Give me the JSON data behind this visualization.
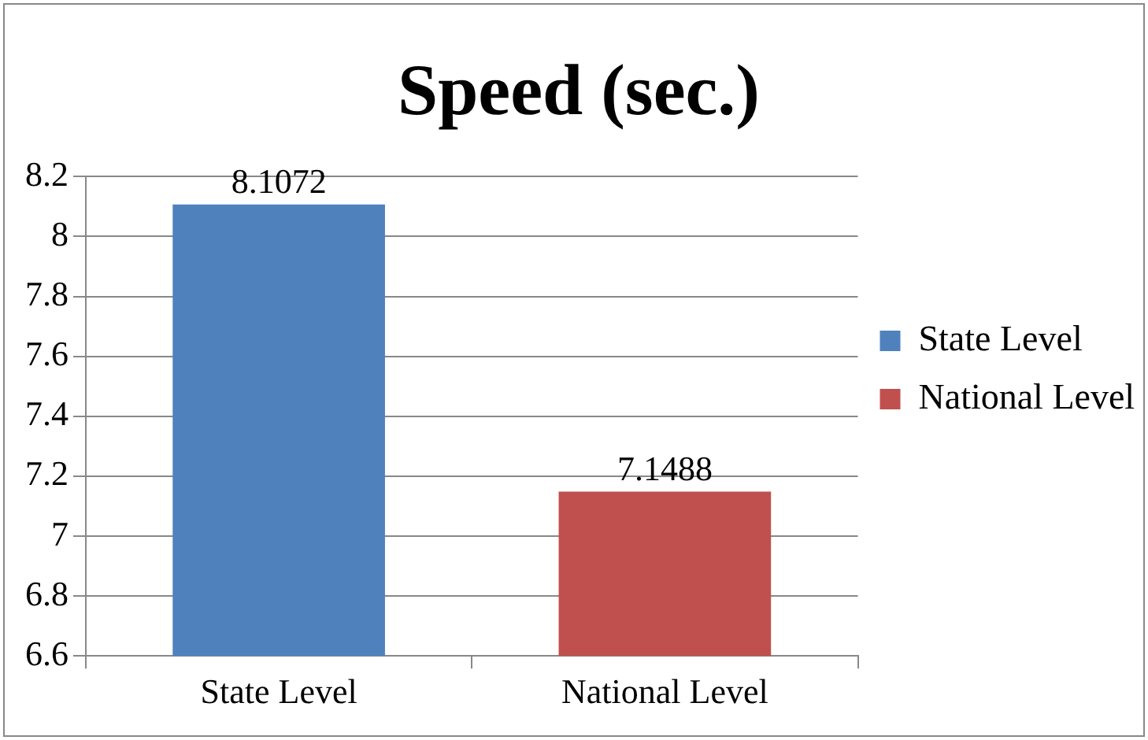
{
  "chart_data": {
    "type": "bar",
    "title": "Speed (sec.)",
    "categories": [
      "State Level",
      "National Level"
    ],
    "series": [
      {
        "name": "State Level",
        "color": "#4f81bd",
        "values": [
          8.1072,
          null
        ]
      },
      {
        "name": "National Level",
        "color": "#c0504d",
        "values": [
          null,
          7.1488
        ]
      }
    ],
    "ylim": [
      6.6,
      8.2
    ],
    "yticks": [
      6.6,
      6.8,
      7,
      7.2,
      7.4,
      7.6,
      7.8,
      8,
      8.2
    ],
    "grid": "y",
    "legend": "right",
    "data_labels": true
  }
}
